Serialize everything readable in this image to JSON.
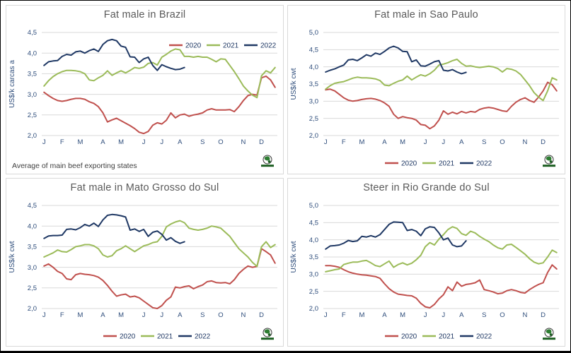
{
  "page": {
    "background": "#ffffff"
  },
  "colors": {
    "series_2020": "#C0504D",
    "series_2021": "#9BBB59",
    "series_2022": "#1F3864",
    "grid": "#D9D9D9",
    "axis_text": "#2E4D7B",
    "legend_text": "#1F3864",
    "title_text": "#595959",
    "footnote_text": "#3F3F3F",
    "panel_border": "#D9D9D9"
  },
  "months": [
    "J",
    "F",
    "M",
    "A",
    "M",
    "J",
    "J",
    "A",
    "S",
    "O",
    "N",
    "D"
  ],
  "chart_data": [
    {
      "type": "line",
      "title": "Fat male in Brazil",
      "ylabel": "US$/k carcas a",
      "footnote": "Average of main beef exporting states",
      "legend_position": "top-right",
      "ylim": [
        2.0,
        4.5
      ],
      "ytick_step": 0.5,
      "ytick_labels": [
        "2,0",
        "2,5",
        "3,0",
        "3,5",
        "4,0",
        "4,5"
      ],
      "x_labels": [
        "J",
        "F",
        "M",
        "A",
        "M",
        "J",
        "J",
        "A",
        "S",
        "O",
        "N",
        "D"
      ],
      "series": [
        {
          "name": "2020",
          "color": "#C0504D",
          "values": [
            3.05,
            2.97,
            2.9,
            2.85,
            2.83,
            2.85,
            2.88,
            2.9,
            2.9,
            2.88,
            2.82,
            2.78,
            2.7,
            2.55,
            2.33,
            2.38,
            2.42,
            2.36,
            2.3,
            2.24,
            2.17,
            2.08,
            2.05,
            2.1,
            2.25,
            2.31,
            2.28,
            2.37,
            2.55,
            2.43,
            2.5,
            2.52,
            2.47,
            2.5,
            2.52,
            2.55,
            2.62,
            2.65,
            2.62,
            2.62,
            2.62,
            2.63,
            2.58,
            2.7,
            2.85,
            2.97,
            3.0,
            2.98,
            3.4,
            3.44,
            3.35,
            3.17
          ]
        },
        {
          "name": "2021",
          "color": "#9BBB59",
          "values": [
            3.2,
            3.33,
            3.43,
            3.5,
            3.55,
            3.58,
            3.58,
            3.57,
            3.55,
            3.5,
            3.35,
            3.33,
            3.4,
            3.46,
            3.57,
            3.46,
            3.52,
            3.57,
            3.52,
            3.58,
            3.65,
            3.63,
            3.66,
            3.75,
            3.77,
            3.71,
            3.9,
            3.97,
            4.05,
            4.1,
            4.08,
            3.92,
            3.92,
            3.9,
            3.92,
            3.9,
            3.9,
            3.85,
            3.79,
            3.86,
            3.85,
            3.7,
            3.55,
            3.38,
            3.2,
            3.08,
            2.98,
            2.92,
            3.45,
            3.57,
            3.52,
            3.65
          ]
        },
        {
          "name": "2022",
          "color": "#1F3864",
          "values": [
            3.7,
            3.79,
            3.81,
            3.82,
            3.92,
            3.97,
            3.95,
            4.03,
            4.05,
            4.0,
            4.06,
            4.1,
            4.04,
            4.21,
            4.3,
            4.33,
            4.3,
            4.17,
            4.14,
            3.91,
            3.9,
            3.77,
            3.86,
            3.9,
            3.7,
            3.58,
            3.72,
            3.67,
            3.63,
            3.6,
            3.61,
            3.65
          ]
        }
      ]
    },
    {
      "type": "line",
      "title": "Fat male in Sao Paulo",
      "ylabel": "US$/k cwt",
      "footnote": "",
      "legend_position": "bottom",
      "ylim": [
        2.0,
        5.0
      ],
      "ytick_step": 0.5,
      "ytick_labels": [
        "2,0",
        "2,5",
        "3,0",
        "3,5",
        "4,0",
        "4,5",
        "5,0"
      ],
      "x_labels": [
        "J",
        "F",
        "M",
        "A",
        "M",
        "J",
        "J",
        "A",
        "S",
        "O",
        "N",
        "D"
      ],
      "series": [
        {
          "name": "2020",
          "color": "#C0504D",
          "values": [
            3.33,
            3.35,
            3.3,
            3.2,
            3.1,
            3.03,
            3.0,
            3.02,
            3.05,
            3.07,
            3.08,
            3.06,
            3.02,
            2.95,
            2.85,
            2.62,
            2.5,
            2.55,
            2.52,
            2.5,
            2.45,
            2.32,
            2.3,
            2.2,
            2.28,
            2.45,
            2.72,
            2.62,
            2.68,
            2.63,
            2.7,
            2.66,
            2.7,
            2.68,
            2.76,
            2.8,
            2.82,
            2.8,
            2.76,
            2.72,
            2.7,
            2.85,
            2.97,
            3.05,
            3.1,
            3.02,
            2.97,
            3.12,
            3.3,
            3.55,
            3.48,
            3.3
          ]
        },
        {
          "name": "2021",
          "color": "#9BBB59",
          "values": [
            3.35,
            3.45,
            3.52,
            3.55,
            3.57,
            3.62,
            3.67,
            3.7,
            3.68,
            3.68,
            3.67,
            3.65,
            3.6,
            3.47,
            3.45,
            3.52,
            3.58,
            3.62,
            3.73,
            3.62,
            3.7,
            3.77,
            3.73,
            3.8,
            3.9,
            4.05,
            4.08,
            4.12,
            4.18,
            4.22,
            4.1,
            4.02,
            4.03,
            4.0,
            3.98,
            4.0,
            4.02,
            4.0,
            3.95,
            3.85,
            3.95,
            3.93,
            3.88,
            3.78,
            3.62,
            3.45,
            3.25,
            3.12,
            3.02,
            3.3,
            3.68,
            3.62
          ]
        },
        {
          "name": "2022",
          "color": "#1F3864",
          "values": [
            3.85,
            3.9,
            3.94,
            4.0,
            4.05,
            4.2,
            4.22,
            4.18,
            4.26,
            4.35,
            4.31,
            4.4,
            4.36,
            4.45,
            4.55,
            4.6,
            4.55,
            4.45,
            4.44,
            4.15,
            4.2,
            4.03,
            4.02,
            4.08,
            4.15,
            4.18,
            3.9,
            3.88,
            3.92,
            3.85,
            3.8,
            3.84
          ]
        }
      ]
    },
    {
      "type": "line",
      "title": "Fat male in Mato Grosso do Sul",
      "ylabel": "US$/k cwt",
      "footnote": "",
      "legend_position": "bottom",
      "ylim": [
        2.0,
        4.5
      ],
      "ytick_step": 0.5,
      "ytick_labels": [
        "2,0",
        "2,5",
        "3,0",
        "3,5",
        "4,0",
        "4,5"
      ],
      "x_labels": [
        "J",
        "F",
        "M",
        "A",
        "M",
        "J",
        "J",
        "A",
        "S",
        "O",
        "N",
        "D"
      ],
      "series": [
        {
          "name": "2020",
          "color": "#C0504D",
          "values": [
            3.03,
            3.08,
            3.0,
            2.9,
            2.85,
            2.72,
            2.7,
            2.82,
            2.85,
            2.83,
            2.82,
            2.8,
            2.76,
            2.68,
            2.56,
            2.42,
            2.3,
            2.33,
            2.35,
            2.28,
            2.3,
            2.26,
            2.18,
            2.1,
            2.02,
            2.0,
            2.07,
            2.2,
            2.28,
            2.52,
            2.5,
            2.53,
            2.55,
            2.48,
            2.53,
            2.57,
            2.65,
            2.67,
            2.63,
            2.62,
            2.63,
            2.6,
            2.7,
            2.85,
            2.95,
            3.03,
            3.0,
            3.02,
            3.45,
            3.38,
            3.3,
            3.1
          ]
        },
        {
          "name": "2021",
          "color": "#9BBB59",
          "values": [
            3.25,
            3.3,
            3.35,
            3.42,
            3.38,
            3.37,
            3.43,
            3.5,
            3.52,
            3.55,
            3.55,
            3.52,
            3.45,
            3.3,
            3.25,
            3.28,
            3.4,
            3.45,
            3.52,
            3.45,
            3.38,
            3.45,
            3.52,
            3.55,
            3.6,
            3.62,
            3.75,
            3.98,
            4.05,
            4.1,
            4.13,
            4.08,
            3.95,
            3.92,
            3.9,
            3.92,
            3.95,
            4.0,
            3.98,
            3.95,
            3.85,
            3.75,
            3.6,
            3.45,
            3.35,
            3.25,
            3.12,
            3.02,
            3.5,
            3.62,
            3.48,
            3.55
          ]
        },
        {
          "name": "2022",
          "color": "#1F3864",
          "values": [
            3.7,
            3.76,
            3.77,
            3.77,
            3.78,
            3.92,
            3.93,
            3.91,
            3.96,
            4.04,
            4.0,
            4.07,
            3.99,
            4.15,
            4.26,
            4.28,
            4.27,
            4.25,
            4.22,
            3.9,
            3.93,
            3.87,
            3.92,
            3.75,
            3.85,
            3.88,
            3.8,
            3.66,
            3.72,
            3.63,
            3.58,
            3.62
          ]
        }
      ]
    },
    {
      "type": "line",
      "title": "Steer in Rio Grande do Sul",
      "ylabel": "US$/k cwt",
      "footnote": "",
      "legend_position": "bottom",
      "ylim": [
        2.0,
        5.0
      ],
      "ytick_step": 0.5,
      "ytick_labels": [
        "2,0",
        "2,5",
        "3,0",
        "3,5",
        "4,0",
        "4,5",
        "5,0"
      ],
      "x_labels": [
        "J",
        "F",
        "M",
        "A",
        "M",
        "J",
        "J",
        "A",
        "S",
        "O",
        "N",
        "D"
      ],
      "series": [
        {
          "name": "2020",
          "color": "#C0504D",
          "values": [
            3.25,
            3.25,
            3.23,
            3.2,
            3.13,
            3.07,
            3.03,
            3.0,
            2.98,
            2.97,
            2.95,
            2.93,
            2.88,
            2.72,
            2.58,
            2.48,
            2.42,
            2.4,
            2.38,
            2.37,
            2.3,
            2.15,
            2.05,
            2.02,
            2.12,
            2.28,
            2.4,
            2.63,
            2.52,
            2.77,
            2.65,
            2.7,
            2.72,
            2.75,
            2.83,
            2.55,
            2.52,
            2.48,
            2.43,
            2.45,
            2.52,
            2.55,
            2.52,
            2.47,
            2.45,
            2.55,
            2.63,
            2.7,
            2.75,
            3.05,
            3.27,
            3.15
          ]
        },
        {
          "name": "2021",
          "color": "#9BBB59",
          "values": [
            3.07,
            3.1,
            3.13,
            3.15,
            3.28,
            3.32,
            3.35,
            3.35,
            3.38,
            3.4,
            3.33,
            3.25,
            3.22,
            3.3,
            3.38,
            3.2,
            3.28,
            3.33,
            3.27,
            3.32,
            3.42,
            3.55,
            3.8,
            3.92,
            3.85,
            4.02,
            4.15,
            4.3,
            4.38,
            4.33,
            4.18,
            4.13,
            4.25,
            4.2,
            4.1,
            4.02,
            3.95,
            3.85,
            3.77,
            3.73,
            3.85,
            3.87,
            3.78,
            3.68,
            3.58,
            3.45,
            3.35,
            3.3,
            3.33,
            3.5,
            3.7,
            3.63
          ]
        },
        {
          "name": "2022",
          "color": "#1F3864",
          "values": [
            3.73,
            3.82,
            3.83,
            3.85,
            3.9,
            3.98,
            3.95,
            3.97,
            4.1,
            4.08,
            4.12,
            4.08,
            4.15,
            4.3,
            4.45,
            4.52,
            4.51,
            4.5,
            4.27,
            4.3,
            4.25,
            4.12,
            4.32,
            4.38,
            4.36,
            4.2,
            4.0,
            4.05,
            3.85,
            3.8,
            3.82,
            3.97
          ]
        }
      ]
    }
  ]
}
